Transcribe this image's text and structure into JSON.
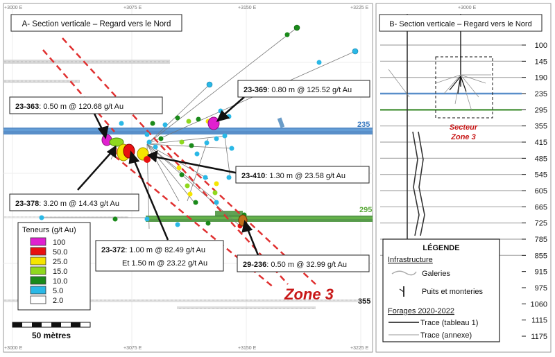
{
  "panel_a": {
    "title": "A- Section verticale – Regard vers le Nord",
    "top_ticks": [
      "+3000 E",
      "+3075 E",
      "+3150 E",
      "+3225 E"
    ],
    "bottom_ticks": [
      "+3000 E",
      "+3075 E",
      "+3150 E",
      "+3225 E"
    ],
    "level_labels": {
      "l235": "235",
      "l295": "295",
      "l355": "355"
    },
    "zone_label": "Zone 3",
    "callouts": {
      "c363": {
        "hole": "23-363",
        "text": ": 0.50 m @ 120.68 g/t Au"
      },
      "c369": {
        "hole": "23-369",
        "text": ": 0.80 m @ 125.52 g/t Au"
      },
      "c410": {
        "hole": "23-410",
        "text": ": 1.30 m @ 23.58 g/t Au"
      },
      "c378": {
        "hole": "23-378",
        "text": ": 3.20 m @ 14.43 g/t Au"
      },
      "c372": {
        "hole": "23-372",
        "text": ": 1.00 m @ 82.49 g/t Au",
        "line2": "Et 1.50 m @ 23.22 g/t Au"
      },
      "c236": {
        "hole": "29-236",
        "text": ": 0.50 m @ 32.99 g/t Au"
      }
    },
    "grade_legend": {
      "title": "Teneurs (g/t Au)",
      "items": [
        {
          "label": "100",
          "color": "#e020d0"
        },
        {
          "label": "50.0",
          "color": "#e81010"
        },
        {
          "label": "25.0",
          "color": "#f5e500"
        },
        {
          "label": "15.0",
          "color": "#8fd81e"
        },
        {
          "label": "10.0",
          "color": "#1a8a1a"
        },
        {
          "label": "5.0",
          "color": "#2ab8e6"
        },
        {
          "label": "2.0",
          "color": "#ffffff"
        }
      ]
    },
    "scale_bar": "50 mètres"
  },
  "panel_b": {
    "title": "B- Section verticale – Regard vers le Nord",
    "top_tick": "+3000 E",
    "levels": [
      "100",
      "145",
      "190",
      "235",
      "295",
      "355",
      "415",
      "485",
      "545",
      "605",
      "665",
      "725",
      "785",
      "855",
      "915",
      "975",
      "1060",
      "1115",
      "1175"
    ],
    "sector_label": "Secteur",
    "sector_label2": "Zone 3"
  },
  "legend": {
    "title": "LÉGENDE",
    "infra_title": "Infrastructure",
    "galeries": "Galeries",
    "puits": "Puits et monteries",
    "forages_title": "Forages 2020-2022",
    "trace1": "Trace (tableau 1)",
    "trace2": "Trace (annexe)"
  }
}
